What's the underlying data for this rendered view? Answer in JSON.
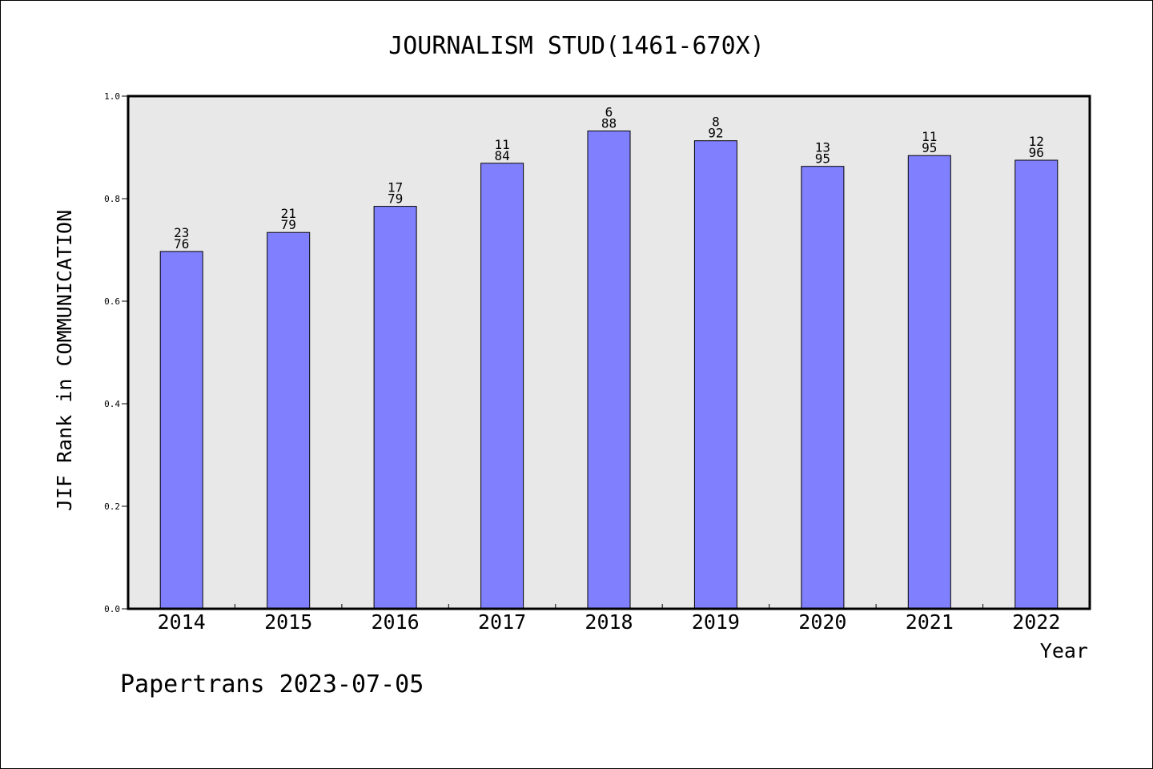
{
  "chart_data": {
    "type": "bar",
    "title": "JOURNALISM STUD(1461-670X)",
    "xlabel": "Year",
    "ylabel": "JIF Rank in COMMUNICATION",
    "ylim": [
      0,
      1.0
    ],
    "yticks": [
      "0.0",
      "0.2",
      "0.4",
      "0.6",
      "0.8",
      "1.0"
    ],
    "grid": false,
    "categories": [
      "2014",
      "2015",
      "2016",
      "2017",
      "2018",
      "2019",
      "2020",
      "2021",
      "2022"
    ],
    "values": [
      0.697,
      0.734,
      0.785,
      0.869,
      0.932,
      0.913,
      0.863,
      0.884,
      0.875
    ],
    "rank_labels": [
      "23",
      "21",
      "17",
      "11",
      "6",
      "8",
      "13",
      "11",
      "12"
    ],
    "total_labels": [
      "76",
      "79",
      "79",
      "84",
      "88",
      "92",
      "95",
      "95",
      "96"
    ],
    "colors": {
      "bar_fill": "#8080ff",
      "bar_stroke": "#000000",
      "plot_background": "#e8e8e8",
      "axis": "#000000"
    }
  },
  "footer": {
    "text": "Papertrans 2023-07-05"
  }
}
